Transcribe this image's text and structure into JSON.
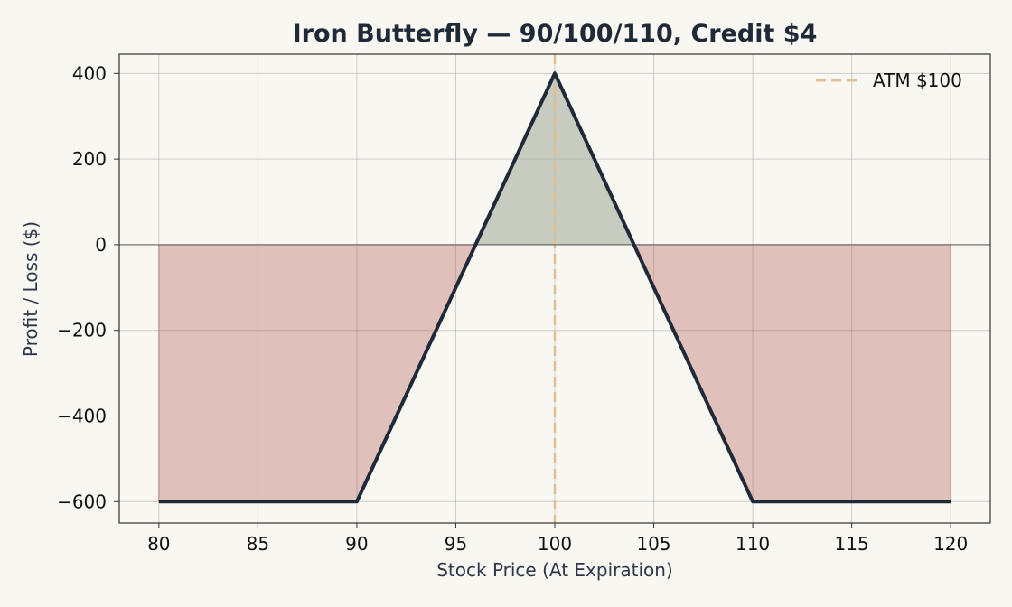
{
  "chart_data": {
    "type": "line",
    "title": "Iron Butterfly — 90/100/110, Credit $4",
    "xlabel": "Stock Price (At Expiration)",
    "ylabel": "Profit / Loss ($)",
    "xlim": [
      78,
      122
    ],
    "ylim": [
      -650,
      445
    ],
    "xticks": [
      80,
      85,
      90,
      95,
      100,
      105,
      110,
      115,
      120
    ],
    "yticks": [
      400,
      200,
      0,
      -200,
      -400,
      -600
    ],
    "ytick_labels": [
      "400",
      "200",
      "0",
      "−200",
      "−400",
      "−600"
    ],
    "grid": true,
    "legend": {
      "position": "top-right",
      "entries": [
        {
          "label": "ATM $100",
          "style": "dashed",
          "color": "#e0c08f"
        }
      ]
    },
    "series": [
      {
        "x": [
          80,
          90,
          100,
          110,
          120
        ],
        "y": [
          -600,
          -600,
          400,
          -600,
          -600
        ],
        "color": "#1f2937"
      }
    ],
    "reference_lines": [
      {
        "axis": "x",
        "value": 100,
        "color": "#e0c08f",
        "style": "dashed"
      },
      {
        "axis": "y",
        "value": 0,
        "color": "#555555",
        "style": "solid"
      }
    ],
    "fills": {
      "profit_color": "#a6ad9f",
      "loss_color": "#b55a57"
    }
  }
}
